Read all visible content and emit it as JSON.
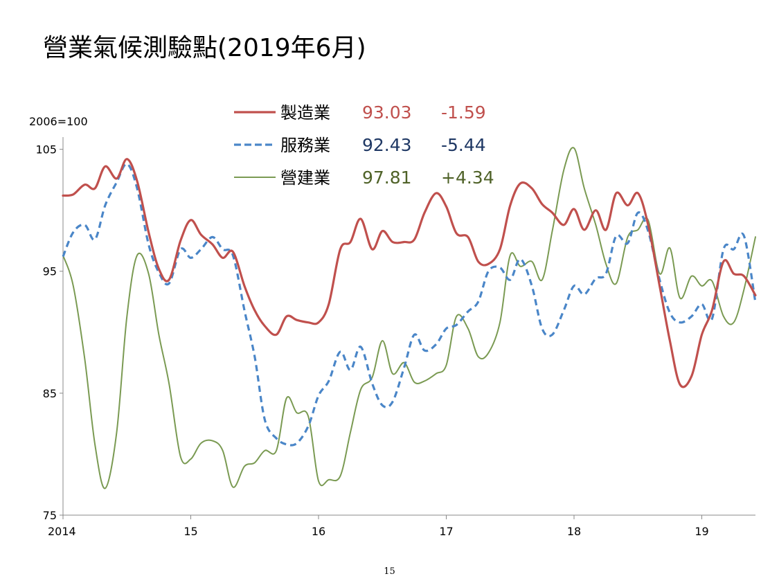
{
  "page": {
    "title": "營業氣候測驗點(2019年6月)",
    "page_number": "15"
  },
  "chart_data": {
    "type": "line",
    "unit_label": "2006=100",
    "ylim": [
      75,
      106
    ],
    "y_ticks": [
      75,
      85,
      95,
      105
    ],
    "x_range": [
      2014.0,
      2019.42
    ],
    "x_ticks": [
      {
        "value": 2014,
        "label": "2014"
      },
      {
        "value": 2015,
        "label": "15"
      },
      {
        "value": 2016,
        "label": "16"
      },
      {
        "value": 2017,
        "label": "17"
      },
      {
        "value": 2018,
        "label": "18"
      },
      {
        "value": 2019,
        "label": "19"
      }
    ],
    "grid": false,
    "legend_position": "top-center",
    "series": [
      {
        "name": "製造業",
        "latest": "93.03",
        "change": "-1.59",
        "color": "#c0504d",
        "style": "solid",
        "points": [
          [
            2014.0,
            101.2
          ],
          [
            2014.08,
            101.3
          ],
          [
            2014.17,
            102.1
          ],
          [
            2014.25,
            101.8
          ],
          [
            2014.33,
            103.6
          ],
          [
            2014.42,
            102.6
          ],
          [
            2014.5,
            104.2
          ],
          [
            2014.58,
            102.4
          ],
          [
            2014.67,
            98.2
          ],
          [
            2014.75,
            95.2
          ],
          [
            2014.83,
            94.3
          ],
          [
            2014.92,
            97.5
          ],
          [
            2015.0,
            99.2
          ],
          [
            2015.08,
            98.0
          ],
          [
            2015.17,
            97.2
          ],
          [
            2015.25,
            96.1
          ],
          [
            2015.33,
            96.6
          ],
          [
            2015.42,
            93.8
          ],
          [
            2015.5,
            91.8
          ],
          [
            2015.58,
            90.5
          ],
          [
            2015.67,
            89.8
          ],
          [
            2015.75,
            91.3
          ],
          [
            2015.83,
            91.0
          ],
          [
            2015.92,
            90.8
          ],
          [
            2016.0,
            90.8
          ],
          [
            2016.08,
            92.3
          ],
          [
            2016.17,
            96.8
          ],
          [
            2016.25,
            97.4
          ],
          [
            2016.33,
            99.3
          ],
          [
            2016.42,
            96.8
          ],
          [
            2016.5,
            98.3
          ],
          [
            2016.58,
            97.4
          ],
          [
            2016.67,
            97.4
          ],
          [
            2016.75,
            97.6
          ],
          [
            2016.83,
            99.8
          ],
          [
            2016.92,
            101.4
          ],
          [
            2017.0,
            100.3
          ],
          [
            2017.08,
            98.1
          ],
          [
            2017.17,
            97.8
          ],
          [
            2017.25,
            95.8
          ],
          [
            2017.33,
            95.6
          ],
          [
            2017.42,
            96.8
          ],
          [
            2017.5,
            100.4
          ],
          [
            2017.58,
            102.2
          ],
          [
            2017.67,
            101.8
          ],
          [
            2017.75,
            100.5
          ],
          [
            2017.83,
            99.8
          ],
          [
            2017.92,
            98.8
          ],
          [
            2018.0,
            100.1
          ],
          [
            2018.08,
            98.4
          ],
          [
            2018.17,
            100.0
          ],
          [
            2018.25,
            98.4
          ],
          [
            2018.33,
            101.4
          ],
          [
            2018.42,
            100.4
          ],
          [
            2018.5,
            101.4
          ],
          [
            2018.58,
            98.8
          ],
          [
            2018.67,
            93.8
          ],
          [
            2018.75,
            89.3
          ],
          [
            2018.83,
            85.7
          ],
          [
            2018.92,
            86.4
          ],
          [
            2019.0,
            89.8
          ],
          [
            2019.08,
            91.8
          ],
          [
            2019.17,
            95.8
          ],
          [
            2019.25,
            94.8
          ],
          [
            2019.33,
            94.6
          ],
          [
            2019.42,
            93.03
          ]
        ]
      },
      {
        "name": "服務業",
        "latest": "92.43",
        "change": "-5.44",
        "color": "#4a86c8",
        "style": "dashed",
        "points": [
          [
            2014.0,
            96.2
          ],
          [
            2014.08,
            98.2
          ],
          [
            2014.17,
            98.8
          ],
          [
            2014.25,
            97.6
          ],
          [
            2014.33,
            100.4
          ],
          [
            2014.42,
            102.3
          ],
          [
            2014.5,
            103.8
          ],
          [
            2014.58,
            101.8
          ],
          [
            2014.67,
            97.2
          ],
          [
            2014.75,
            94.9
          ],
          [
            2014.83,
            94.0
          ],
          [
            2014.92,
            96.8
          ],
          [
            2015.0,
            96.1
          ],
          [
            2015.08,
            96.8
          ],
          [
            2015.17,
            97.8
          ],
          [
            2015.25,
            96.8
          ],
          [
            2015.33,
            96.3
          ],
          [
            2015.42,
            91.8
          ],
          [
            2015.5,
            88.0
          ],
          [
            2015.58,
            82.8
          ],
          [
            2015.67,
            81.3
          ],
          [
            2015.75,
            80.8
          ],
          [
            2015.83,
            80.9
          ],
          [
            2015.92,
            82.3
          ],
          [
            2016.0,
            84.8
          ],
          [
            2016.08,
            86.0
          ],
          [
            2016.17,
            88.4
          ],
          [
            2016.25,
            86.9
          ],
          [
            2016.33,
            88.8
          ],
          [
            2016.42,
            85.8
          ],
          [
            2016.5,
            84.0
          ],
          [
            2016.58,
            84.3
          ],
          [
            2016.67,
            87.1
          ],
          [
            2016.75,
            89.8
          ],
          [
            2016.83,
            88.5
          ],
          [
            2016.92,
            89.0
          ],
          [
            2017.0,
            90.3
          ],
          [
            2017.08,
            90.6
          ],
          [
            2017.17,
            91.7
          ],
          [
            2017.25,
            92.5
          ],
          [
            2017.33,
            95.0
          ],
          [
            2017.42,
            95.3
          ],
          [
            2017.5,
            94.3
          ],
          [
            2017.58,
            96.0
          ],
          [
            2017.67,
            93.8
          ],
          [
            2017.75,
            90.3
          ],
          [
            2017.83,
            89.8
          ],
          [
            2017.92,
            91.8
          ],
          [
            2018.0,
            93.8
          ],
          [
            2018.08,
            93.1
          ],
          [
            2018.17,
            94.4
          ],
          [
            2018.25,
            94.8
          ],
          [
            2018.33,
            97.9
          ],
          [
            2018.42,
            97.3
          ],
          [
            2018.5,
            99.8
          ],
          [
            2018.58,
            98.3
          ],
          [
            2018.67,
            94.3
          ],
          [
            2018.75,
            91.6
          ],
          [
            2018.83,
            90.8
          ],
          [
            2018.92,
            91.3
          ],
          [
            2019.0,
            92.3
          ],
          [
            2019.08,
            91.1
          ],
          [
            2019.17,
            96.8
          ],
          [
            2019.25,
            96.8
          ],
          [
            2019.33,
            97.9
          ],
          [
            2019.42,
            92.43
          ]
        ]
      },
      {
        "name": "營建業",
        "latest": "97.81",
        "change": "+4.34",
        "color": "#7a9a52",
        "style": "solid",
        "points": [
          [
            2014.0,
            96.3
          ],
          [
            2014.08,
            93.8
          ],
          [
            2014.17,
            87.8
          ],
          [
            2014.25,
            80.8
          ],
          [
            2014.33,
            77.2
          ],
          [
            2014.42,
            81.8
          ],
          [
            2014.5,
            91.3
          ],
          [
            2014.58,
            96.3
          ],
          [
            2014.67,
            94.8
          ],
          [
            2014.75,
            89.8
          ],
          [
            2014.83,
            85.8
          ],
          [
            2014.92,
            79.8
          ],
          [
            2015.0,
            79.6
          ],
          [
            2015.08,
            80.9
          ],
          [
            2015.17,
            81.1
          ],
          [
            2015.25,
            80.3
          ],
          [
            2015.33,
            77.3
          ],
          [
            2015.42,
            79.0
          ],
          [
            2015.5,
            79.3
          ],
          [
            2015.58,
            80.3
          ],
          [
            2015.67,
            80.3
          ],
          [
            2015.75,
            84.6
          ],
          [
            2015.83,
            83.4
          ],
          [
            2015.92,
            83.1
          ],
          [
            2016.0,
            77.8
          ],
          [
            2016.08,
            77.9
          ],
          [
            2016.17,
            78.2
          ],
          [
            2016.25,
            81.8
          ],
          [
            2016.33,
            85.3
          ],
          [
            2016.42,
            86.3
          ],
          [
            2016.5,
            89.3
          ],
          [
            2016.58,
            86.6
          ],
          [
            2016.67,
            87.5
          ],
          [
            2016.75,
            85.9
          ],
          [
            2016.83,
            86.0
          ],
          [
            2016.92,
            86.6
          ],
          [
            2017.0,
            87.3
          ],
          [
            2017.08,
            91.3
          ],
          [
            2017.17,
            90.3
          ],
          [
            2017.25,
            88.0
          ],
          [
            2017.33,
            88.3
          ],
          [
            2017.42,
            90.8
          ],
          [
            2017.5,
            96.3
          ],
          [
            2017.58,
            95.4
          ],
          [
            2017.67,
            95.8
          ],
          [
            2017.75,
            94.3
          ],
          [
            2017.83,
            98.3
          ],
          [
            2017.92,
            103.3
          ],
          [
            2018.0,
            105.1
          ],
          [
            2018.08,
            101.8
          ],
          [
            2018.17,
            98.8
          ],
          [
            2018.25,
            95.6
          ],
          [
            2018.33,
            94.0
          ],
          [
            2018.42,
            97.8
          ],
          [
            2018.5,
            98.4
          ],
          [
            2018.58,
            99.2
          ],
          [
            2018.67,
            94.8
          ],
          [
            2018.75,
            96.9
          ],
          [
            2018.83,
            92.8
          ],
          [
            2018.92,
            94.6
          ],
          [
            2019.0,
            93.8
          ],
          [
            2019.08,
            94.2
          ],
          [
            2019.17,
            91.3
          ],
          [
            2019.25,
            90.8
          ],
          [
            2019.33,
            93.5
          ],
          [
            2019.42,
            97.81
          ]
        ]
      }
    ]
  }
}
